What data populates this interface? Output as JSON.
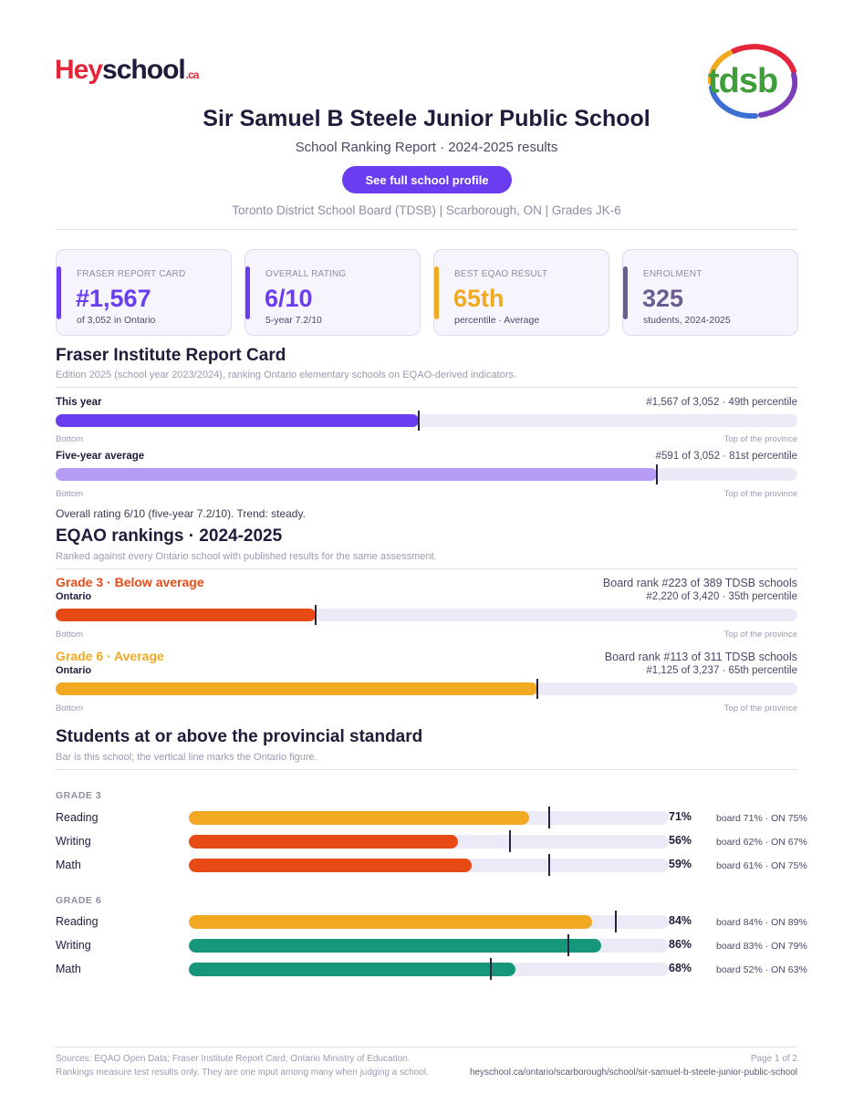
{
  "header": {
    "logo_hey": "Hey",
    "logo_school": "school",
    "logo_ca": ".ca",
    "board_logo_text": "tdsb",
    "title": "Sir Samuel B Steele Junior Public School",
    "subtitle": "School Ranking Report  ·  2024-2025 results",
    "cta_label": "See full school profile",
    "meta": "Toronto District School Board (TDSB)  |  Scarborough, ON  |  Grades JK-6"
  },
  "cards": [
    {
      "label": "FRASER REPORT CARD",
      "value": "#1,567",
      "sub": "of 3,052 in Ontario",
      "color": "#6a3ef0"
    },
    {
      "label": "OVERALL RATING",
      "value": "6/10",
      "sub": "5-year 7.2/10",
      "color": "#6a3ef0"
    },
    {
      "label": "BEST EQAO RESULT",
      "value": "65th",
      "sub": "percentile  ·  Average",
      "color": "#f0a921"
    },
    {
      "label": "ENROLMENT",
      "value": "325",
      "sub": "students, 2024-2025",
      "color": "#6a5d8f"
    }
  ],
  "fraser": {
    "title": "Fraser Institute Report Card",
    "note": "Edition 2025 (school year 2023/2024), ranking Ontario elementary schools on EQAO-derived indicators.",
    "rows": [
      {
        "label": "This year",
        "detail": "#1,567 of 3,052  ·  49th percentile",
        "percentile": 49,
        "color": "#6a3ef0",
        "bottom": "Bottom",
        "top": "Top of the province"
      },
      {
        "label": "Five-year average",
        "detail": "#591 of 3,052  ·  81st percentile",
        "percentile": 81,
        "color": "#b69cf7",
        "bottom": "Bottom",
        "top": "Top of the province"
      }
    ],
    "summary": "Overall rating 6/10 (five-year 7.2/10). Trend: steady."
  },
  "eqao": {
    "title": "EQAO rankings  ·  2024-2025",
    "note": "Ranked against every Ontario school with published results for the same assessment.",
    "grades": [
      {
        "head": "Grade 3  ·  Below average",
        "board_rank": "Board rank #223 of 389 TDSB schools",
        "scope": "Ontario",
        "detail": "#2,220 of 3,420  ·  35th percentile",
        "percentile": 35,
        "color": "#e84a16",
        "bottom": "Bottom",
        "top": "Top of the province"
      },
      {
        "head": "Grade 6  ·  Average",
        "board_rank": "Board rank #113 of 311 TDSB schools",
        "scope": "Ontario",
        "detail": "#1,125 of 3,237  ·  65th percentile",
        "percentile": 65,
        "color": "#f0a921",
        "bottom": "Bottom",
        "top": "Top of the province"
      }
    ]
  },
  "students": {
    "title": "Students at or above the provincial standard",
    "note": "Bar is this school; the vertical line marks the Ontario figure.",
    "groups": [
      {
        "label": "GRADE 3",
        "rows": [
          {
            "subject": "Reading",
            "pct": "71%",
            "value": 71,
            "ontario": 75,
            "compare": "board 71%  ·  ON 75%",
            "color": "#f0a921"
          },
          {
            "subject": "Writing",
            "pct": "56%",
            "value": 56,
            "ontario": 67,
            "compare": "board 62%  ·  ON 67%",
            "color": "#e84a16"
          },
          {
            "subject": "Math",
            "pct": "59%",
            "value": 59,
            "ontario": 75,
            "compare": "board 61%  ·  ON 75%",
            "color": "#e84a16"
          }
        ]
      },
      {
        "label": "GRADE 6",
        "rows": [
          {
            "subject": "Reading",
            "pct": "84%",
            "value": 84,
            "ontario": 89,
            "compare": "board 84%  ·  ON 89%",
            "color": "#f0a921"
          },
          {
            "subject": "Writing",
            "pct": "86%",
            "value": 86,
            "ontario": 79,
            "compare": "board 83%  ·  ON 79%",
            "color": "#16967a"
          },
          {
            "subject": "Math",
            "pct": "68%",
            "value": 68,
            "ontario": 63,
            "compare": "board 52%  ·  ON 63%",
            "color": "#16967a"
          }
        ]
      }
    ]
  },
  "footer": {
    "sources": "Sources: EQAO Open Data; Fraser Institute Report Card; Ontario Ministry of Education.",
    "disclaimer": "Rankings measure test results only. They are one input among many when judging a school.",
    "page": "Page 1 of 2",
    "url": "heyschool.ca/ontario/scarborough/school/sir-samuel-b-steele-junior-public-school"
  }
}
